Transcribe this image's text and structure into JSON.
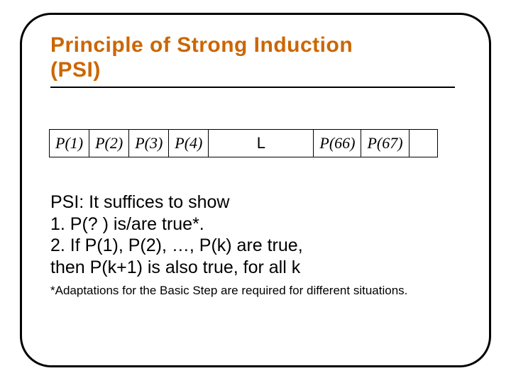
{
  "title": {
    "line1": "Principle of Strong Induction",
    "line2": "(PSI)"
  },
  "table": {
    "cells": [
      "P(1)",
      "P(2)",
      "P(3)",
      "P(4)"
    ],
    "ellipsis": "L",
    "tail": [
      "P(66)",
      "P(67)"
    ]
  },
  "body": {
    "l1": "PSI: It suffices to show",
    "l2": "1. P(? ) is/are true*.",
    "l3": "2. If P(1), P(2), …, P(k) are true,",
    "l4": "then P(k+1) is also true, for all k"
  },
  "footnote": "*Adaptations for the Basic Step are required for different situations."
}
